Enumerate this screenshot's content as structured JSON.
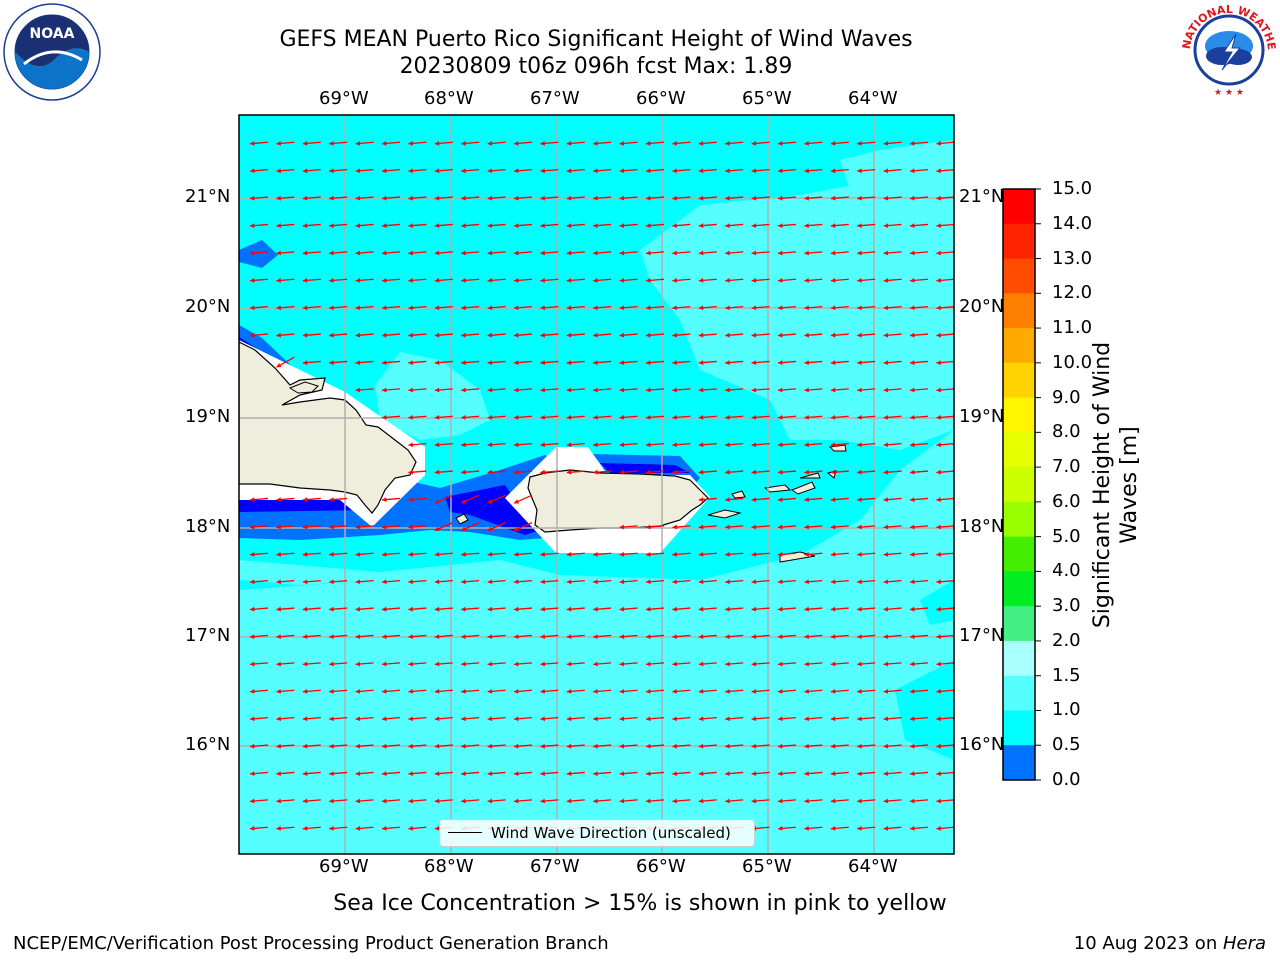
{
  "title": {
    "line1": "GEFS MEAN Puerto Rico Significant Height of Wind Waves",
    "line2": "20230809 t06z 096h fcst   Max: 1.89"
  },
  "map": {
    "lon_labels": [
      "69°W",
      "68°W",
      "67°W",
      "66°W",
      "65°W",
      "64°W"
    ],
    "lat_labels": [
      "21°N",
      "20°N",
      "19°N",
      "18°N",
      "17°N",
      "16°N"
    ],
    "background_color": "#00ffff",
    "land_color": "#efeedd",
    "arrow_color": "#ff0000",
    "legend_label": "Wind Wave Direction (unscaled)"
  },
  "colorbar": {
    "title": "Significant Height of Wind Waves [m]",
    "levels": [
      "15.0",
      "14.0",
      "13.0",
      "12.0",
      "11.0",
      "10.0",
      "9.0",
      "8.0",
      "7.0",
      "6.0",
      "5.0",
      "4.0",
      "3.0",
      "2.0",
      "1.5",
      "1.0",
      "0.5",
      "0.0"
    ],
    "colors": [
      "#ff0000",
      "#ff2400",
      "#ff4c00",
      "#ff8000",
      "#ffaa00",
      "#ffd200",
      "#fff500",
      "#e6ff00",
      "#ccff00",
      "#99ff00",
      "#44ee00",
      "#00ee22",
      "#44f085",
      "#aaffff",
      "#55ffff",
      "#00ffff",
      "#0072ff",
      "#0000ff"
    ]
  },
  "subtitle": "Sea Ice Concentration > 15% is shown in pink to yellow",
  "footer": {
    "left": "NCEP/EMC/Verification Post Processing Product Generation Branch",
    "right_prefix": "10 Aug 2023 on ",
    "right_host": "Hera"
  },
  "logos": {
    "noaa": "NOAA",
    "nws": "NATIONAL WEATHER SERVICE"
  }
}
